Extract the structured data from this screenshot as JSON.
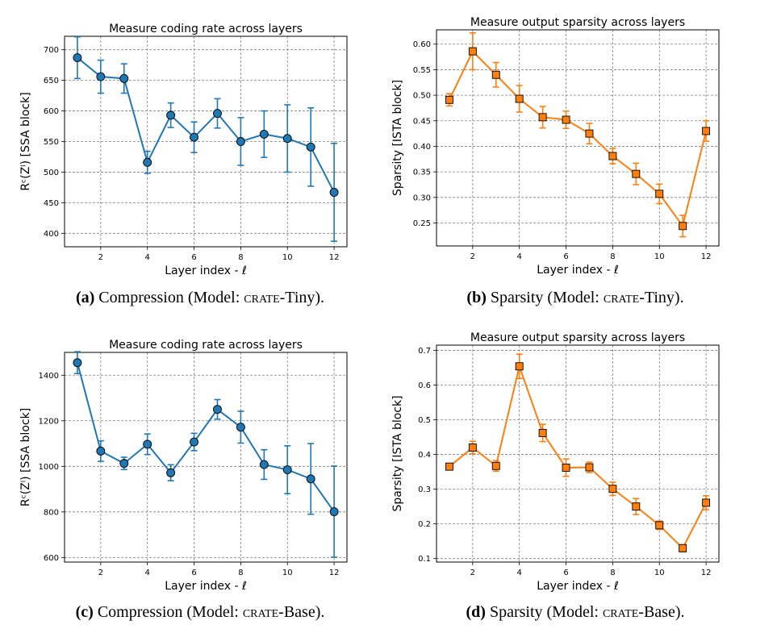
{
  "captions": [
    {
      "tag": "(a)",
      "before": " Compression (Model: ",
      "model": "crate",
      "after": "-Tiny)."
    },
    {
      "tag": "(b)",
      "before": " Sparsity (Model: ",
      "model": "crate",
      "after": "-Tiny)."
    },
    {
      "tag": "(c)",
      "before": " Compression (Model: ",
      "model": "crate",
      "after": "-Base)."
    },
    {
      "tag": "(d)",
      "before": " Sparsity (Model: ",
      "model": "crate",
      "after": "-Base)."
    }
  ],
  "chart_data": [
    {
      "type": "line",
      "title": "Measure coding rate across layers",
      "xlabel": "Layer index - ℓ",
      "ylabel": "Rᶜ(Zˡ) [SSA block]",
      "xlim": [
        0.45,
        12.55
      ],
      "ylim": [
        378,
        722
      ],
      "xticks": [
        2,
        4,
        6,
        8,
        10,
        12
      ],
      "yticks": [
        400,
        450,
        500,
        550,
        600,
        650,
        700
      ],
      "grid": true,
      "color": "#1f77b4",
      "marker": "circle",
      "x": [
        1,
        2,
        3,
        4,
        5,
        6,
        7,
        8,
        9,
        10,
        11,
        12
      ],
      "y": [
        687,
        656,
        653,
        516,
        593,
        557,
        596,
        550,
        562,
        555,
        541,
        467
      ],
      "yerr": [
        34,
        27,
        24,
        18,
        20,
        25,
        24,
        39,
        38,
        55,
        64,
        80
      ]
    },
    {
      "type": "line",
      "title": "Measure output sparsity across layers",
      "xlabel": "Layer index - ℓ",
      "ylabel": "Sparsity [ISTA block]",
      "xlim": [
        0.45,
        12.55
      ],
      "ylim": [
        0.205,
        0.628
      ],
      "xticks": [
        2,
        4,
        6,
        8,
        10,
        12
      ],
      "yticks": [
        0.25,
        0.3,
        0.35,
        0.4,
        0.45,
        0.5,
        0.55,
        0.6
      ],
      "tick_labels_y": [
        "0.25",
        "0.30",
        "0.35",
        "0.40",
        "0.45",
        "0.50",
        "0.55",
        "0.60"
      ],
      "grid": true,
      "color": "#ff7f0e",
      "marker": "square",
      "x": [
        1,
        2,
        3,
        4,
        5,
        6,
        7,
        8,
        9,
        10,
        11,
        12
      ],
      "y": [
        0.491,
        0.586,
        0.54,
        0.493,
        0.457,
        0.452,
        0.425,
        0.381,
        0.346,
        0.307,
        0.244,
        0.43
      ],
      "yerr": [
        0.012,
        0.036,
        0.024,
        0.026,
        0.021,
        0.017,
        0.02,
        0.015,
        0.021,
        0.019,
        0.021,
        0.02
      ]
    },
    {
      "type": "line",
      "title": "Measure coding rate across layers",
      "xlabel": "Layer index - ℓ",
      "ylabel": "Rᶜ(Zˡ) [SSA block]",
      "xlim": [
        0.45,
        12.55
      ],
      "ylim": [
        580,
        1500
      ],
      "xticks": [
        2,
        4,
        6,
        8,
        10,
        12
      ],
      "yticks": [
        600,
        800,
        1000,
        1200,
        1400
      ],
      "grid": true,
      "color": "#1f77b4",
      "marker": "circle",
      "x": [
        1,
        2,
        3,
        4,
        5,
        6,
        7,
        8,
        9,
        10,
        11,
        12
      ],
      "y": [
        1455,
        1067,
        1013,
        1097,
        972,
        1107,
        1250,
        1172,
        1008,
        985,
        945,
        801
      ],
      "yerr": [
        48,
        45,
        27,
        45,
        35,
        38,
        43,
        70,
        65,
        105,
        155,
        200
      ]
    },
    {
      "type": "line",
      "title": "Measure output sparsity across layers",
      "xlabel": "Layer index - ℓ",
      "ylabel": "Sparsity [ISTA block]",
      "xlim": [
        0.45,
        12.55
      ],
      "ylim": [
        0.09,
        0.715
      ],
      "xticks": [
        2,
        4,
        6,
        8,
        10,
        12
      ],
      "yticks": [
        0.1,
        0.2,
        0.3,
        0.4,
        0.5,
        0.6,
        0.7
      ],
      "tick_labels_y": [
        "0.1",
        "0.2",
        "0.3",
        "0.4",
        "0.5",
        "0.6",
        "0.7"
      ],
      "grid": true,
      "color": "#ff7f0e",
      "marker": "square",
      "x": [
        1,
        2,
        3,
        4,
        5,
        6,
        7,
        8,
        9,
        10,
        11,
        12
      ],
      "y": [
        0.365,
        0.42,
        0.367,
        0.654,
        0.462,
        0.362,
        0.363,
        0.301,
        0.25,
        0.196,
        0.13,
        0.261
      ],
      "yerr": [
        0.008,
        0.018,
        0.015,
        0.035,
        0.025,
        0.025,
        0.015,
        0.019,
        0.023,
        0.012,
        0.01,
        0.02
      ]
    }
  ]
}
